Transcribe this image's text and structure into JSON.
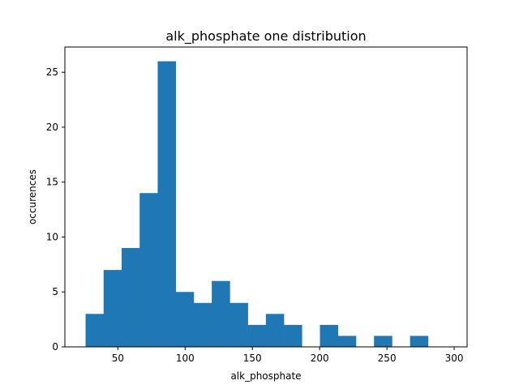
{
  "chart_data": {
    "type": "bar",
    "title": "alk_phosphate one distribution",
    "xlabel": "alk_phosphate",
    "ylabel": "occurences",
    "xlim": [
      10.6,
      309.6
    ],
    "ylim": [
      0,
      27.3
    ],
    "xticks": [
      50,
      100,
      150,
      200,
      250,
      300
    ],
    "yticks": [
      0,
      5,
      10,
      15,
      20,
      25
    ],
    "bin_edges": [
      26,
      39.4,
      52.8,
      66.2,
      79.6,
      93.0,
      106.4,
      119.8,
      133.2,
      146.6,
      160.0,
      173.4,
      186.8,
      200.2,
      213.6,
      227.0,
      240.4,
      253.8,
      267.2,
      280.6,
      294.0
    ],
    "values": [
      3,
      7,
      9,
      14,
      26,
      5,
      4,
      6,
      4,
      2,
      3,
      2,
      0,
      2,
      1,
      0,
      1,
      0,
      1,
      0
    ],
    "bar_color": "#1f77b4",
    "grid": false
  }
}
